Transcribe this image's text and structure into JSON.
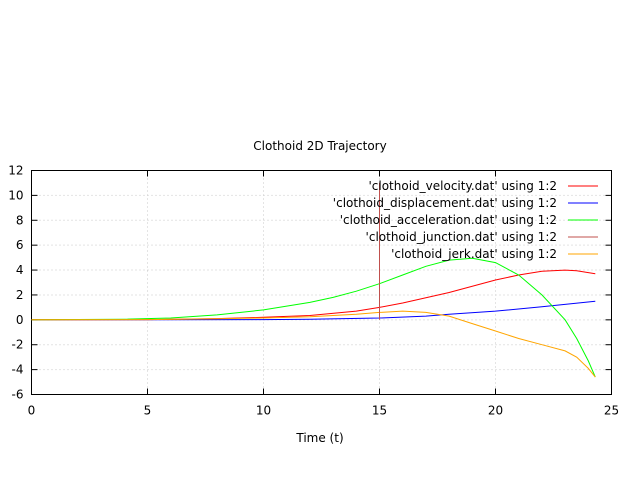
{
  "chart_data": {
    "type": "line",
    "title": "Clothoid 2D Trajectory",
    "xlabel": "Time (t)",
    "ylabel": "",
    "xlim": [
      0,
      25
    ],
    "ylim": [
      -6,
      12
    ],
    "xticks": [
      0,
      5,
      10,
      15,
      20,
      25
    ],
    "yticks": [
      -6,
      -4,
      -2,
      0,
      2,
      4,
      6,
      8,
      10,
      12
    ],
    "grid": true,
    "legend_position": "top-right",
    "series": [
      {
        "name": "'clothoid_velocity.dat' using 1:2",
        "color": "#ff0000",
        "x": [
          0,
          5,
          8,
          10,
          12,
          14,
          15,
          16,
          18,
          20,
          21,
          22,
          23,
          23.5,
          24.3
        ],
        "y": [
          0,
          0.02,
          0.1,
          0.2,
          0.35,
          0.7,
          1.0,
          1.35,
          2.2,
          3.2,
          3.6,
          3.9,
          4.0,
          3.95,
          3.7
        ]
      },
      {
        "name": "'clothoid_displacement.dat' using 1:2",
        "color": "#0000ff",
        "x": [
          0,
          5,
          10,
          12,
          15,
          17,
          18,
          20,
          22,
          24.3
        ],
        "y": [
          0,
          0,
          0.02,
          0.05,
          0.15,
          0.3,
          0.45,
          0.7,
          1.05,
          1.5
        ]
      },
      {
        "name": "'clothoid_acceleration.dat' using 1:2",
        "color": "#00ff00",
        "x": [
          0,
          4,
          6,
          8,
          10,
          12,
          13,
          14,
          15,
          16,
          17,
          18,
          19,
          20,
          21,
          22,
          23,
          23.5,
          24,
          24.3
        ],
        "y": [
          0,
          0.05,
          0.15,
          0.4,
          0.8,
          1.4,
          1.8,
          2.3,
          2.9,
          3.6,
          4.3,
          4.8,
          4.95,
          4.6,
          3.6,
          2.0,
          0,
          -1.5,
          -3.3,
          -4.6
        ]
      },
      {
        "name": "'clothoid_junction.dat' using 1:2",
        "color": "#c0504d",
        "x": [
          15,
          15
        ],
        "y": [
          0,
          11
        ]
      },
      {
        "name": "'clothoid_jerk.dat' using 1:2",
        "color": "#ffa500",
        "x": [
          0,
          5,
          8,
          10,
          12,
          14,
          15,
          16,
          17,
          18,
          19,
          20,
          21,
          22,
          23,
          23.5,
          24,
          24.3
        ],
        "y": [
          0,
          0.02,
          0.08,
          0.15,
          0.25,
          0.45,
          0.6,
          0.7,
          0.6,
          0.3,
          -0.3,
          -0.9,
          -1.5,
          -2.0,
          -2.5,
          -3.0,
          -3.9,
          -4.6
        ]
      }
    ]
  }
}
